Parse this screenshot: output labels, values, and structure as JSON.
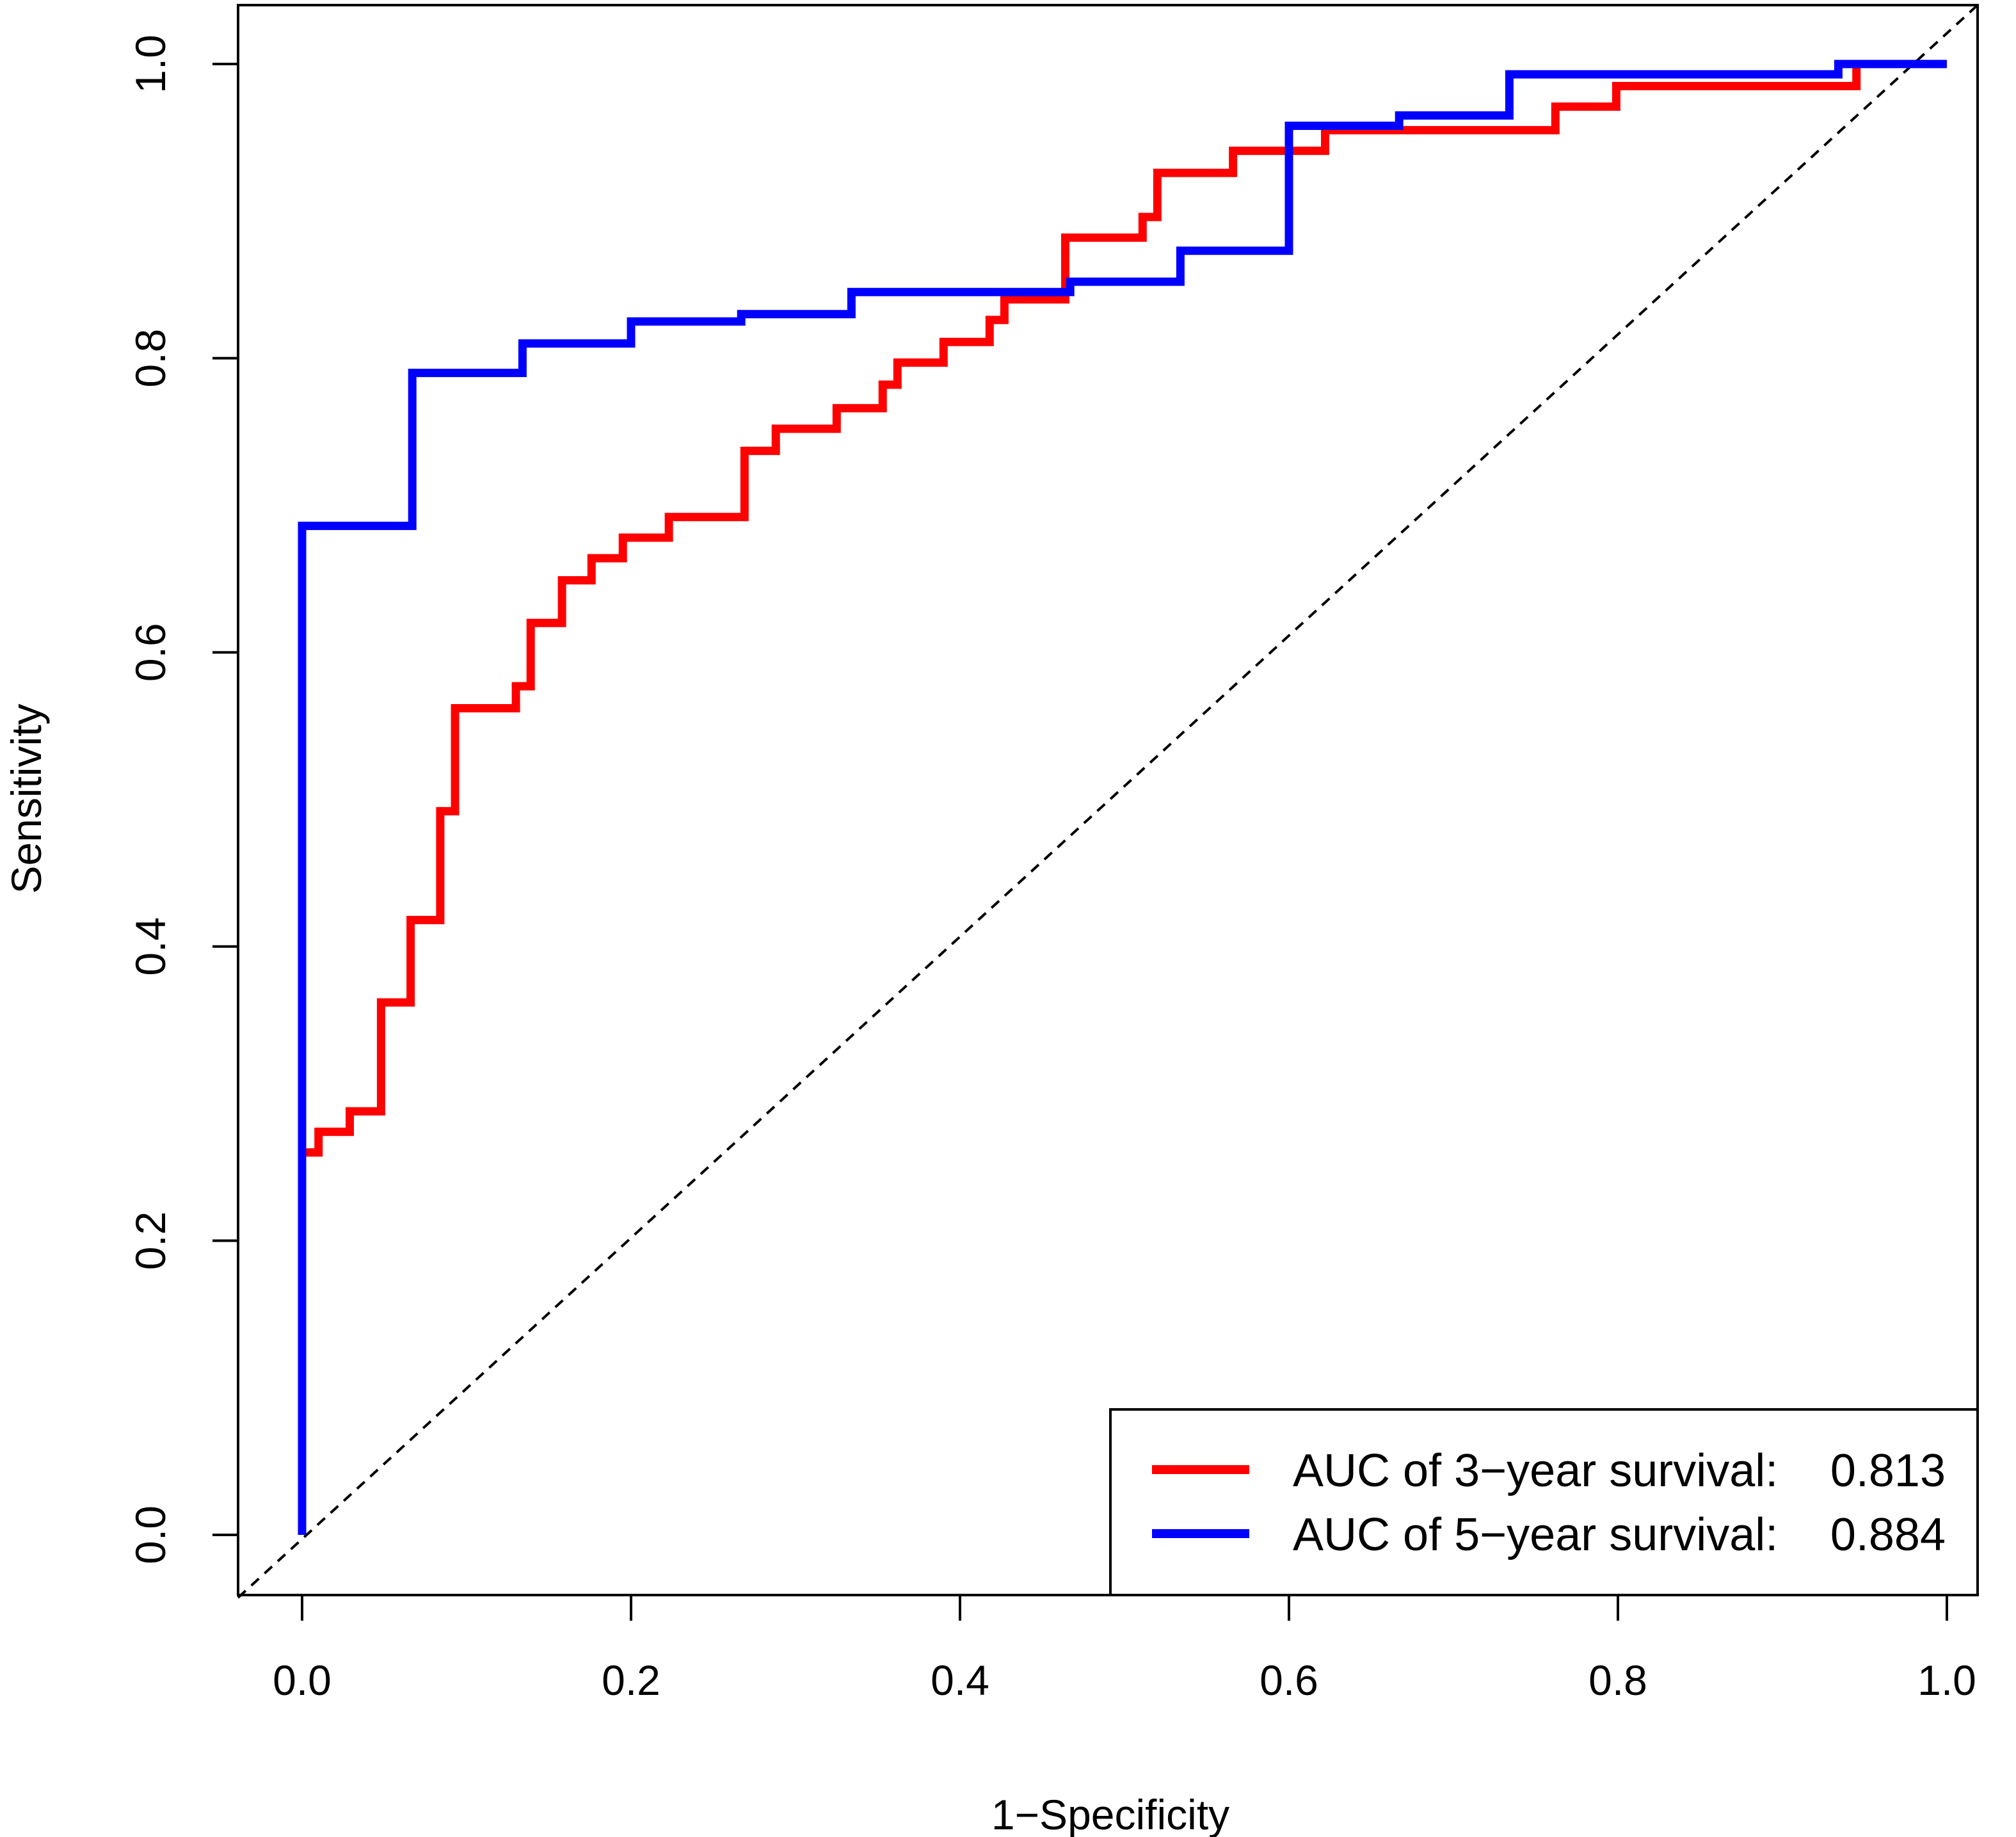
{
  "chart_data": {
    "type": "line",
    "title": "",
    "xlabel": "1−Specificity",
    "ylabel": "Sensitivity",
    "xlim": [
      0.0,
      1.0
    ],
    "ylim": [
      0.0,
      1.0
    ],
    "x_ticks": [
      "0.0",
      "0.2",
      "0.4",
      "0.6",
      "0.8",
      "1.0"
    ],
    "y_ticks": [
      "0.0",
      "0.2",
      "0.4",
      "0.6",
      "0.8",
      "1.0"
    ],
    "grid": false,
    "legend_position": "bottom-right",
    "reference_line": {
      "style": "dashed",
      "color": "#000000",
      "from": [
        0,
        0
      ],
      "to": [
        1,
        1
      ]
    },
    "series": [
      {
        "name": "AUC of 3−year survival:",
        "auc": "0.813",
        "color": "#ff0000",
        "points": [
          [
            0,
            0
          ],
          [
            0,
            0.26
          ],
          [
            0.01,
            0.26
          ],
          [
            0.01,
            0.274
          ],
          [
            0.029,
            0.274
          ],
          [
            0.029,
            0.288
          ],
          [
            0.048,
            0.288
          ],
          [
            0.048,
            0.362
          ],
          [
            0.066,
            0.362
          ],
          [
            0.066,
            0.418
          ],
          [
            0.084,
            0.418
          ],
          [
            0.084,
            0.492
          ],
          [
            0.093,
            0.492
          ],
          [
            0.093,
            0.562
          ],
          [
            0.13,
            0.562
          ],
          [
            0.13,
            0.577
          ],
          [
            0.139,
            0.577
          ],
          [
            0.139,
            0.62
          ],
          [
            0.158,
            0.62
          ],
          [
            0.158,
            0.649
          ],
          [
            0.176,
            0.649
          ],
          [
            0.176,
            0.664
          ],
          [
            0.195,
            0.664
          ],
          [
            0.195,
            0.678
          ],
          [
            0.223,
            0.678
          ],
          [
            0.223,
            0.692
          ],
          [
            0.269,
            0.692
          ],
          [
            0.269,
            0.737
          ],
          [
            0.288,
            0.737
          ],
          [
            0.288,
            0.752
          ],
          [
            0.325,
            0.752
          ],
          [
            0.325,
            0.766
          ],
          [
            0.353,
            0.766
          ],
          [
            0.353,
            0.782
          ],
          [
            0.362,
            0.782
          ],
          [
            0.362,
            0.797
          ],
          [
            0.39,
            0.797
          ],
          [
            0.39,
            0.811
          ],
          [
            0.418,
            0.811
          ],
          [
            0.418,
            0.826
          ],
          [
            0.427,
            0.826
          ],
          [
            0.427,
            0.84
          ],
          [
            0.464,
            0.84
          ],
          [
            0.464,
            0.882
          ],
          [
            0.511,
            0.882
          ],
          [
            0.511,
            0.896
          ],
          [
            0.52,
            0.896
          ],
          [
            0.52,
            0.926
          ],
          [
            0.566,
            0.926
          ],
          [
            0.566,
            0.941
          ],
          [
            0.622,
            0.941
          ],
          [
            0.622,
            0.955
          ],
          [
            0.762,
            0.955
          ],
          [
            0.762,
            0.971
          ],
          [
            0.799,
            0.971
          ],
          [
            0.799,
            0.985
          ],
          [
            0.945,
            0.985
          ],
          [
            0.945,
            1.0
          ],
          [
            1.0,
            1.0
          ]
        ]
      },
      {
        "name": "AUC of 5−year survival:",
        "auc": "0.884",
        "color": "#0000ff",
        "points": [
          [
            0,
            0
          ],
          [
            0,
            0.686
          ],
          [
            0.067,
            0.686
          ],
          [
            0.067,
            0.79
          ],
          [
            0.134,
            0.79
          ],
          [
            0.134,
            0.81
          ],
          [
            0.2,
            0.81
          ],
          [
            0.2,
            0.825
          ],
          [
            0.267,
            0.825
          ],
          [
            0.267,
            0.83
          ],
          [
            0.334,
            0.83
          ],
          [
            0.334,
            0.845
          ],
          [
            0.467,
            0.845
          ],
          [
            0.467,
            0.852
          ],
          [
            0.534,
            0.852
          ],
          [
            0.534,
            0.873
          ],
          [
            0.6,
            0.873
          ],
          [
            0.6,
            0.958
          ],
          [
            0.667,
            0.958
          ],
          [
            0.667,
            0.965
          ],
          [
            0.734,
            0.965
          ],
          [
            0.734,
            0.993
          ],
          [
            0.934,
            0.993
          ],
          [
            0.934,
            1.0
          ],
          [
            1.0,
            1.0
          ]
        ]
      }
    ]
  }
}
